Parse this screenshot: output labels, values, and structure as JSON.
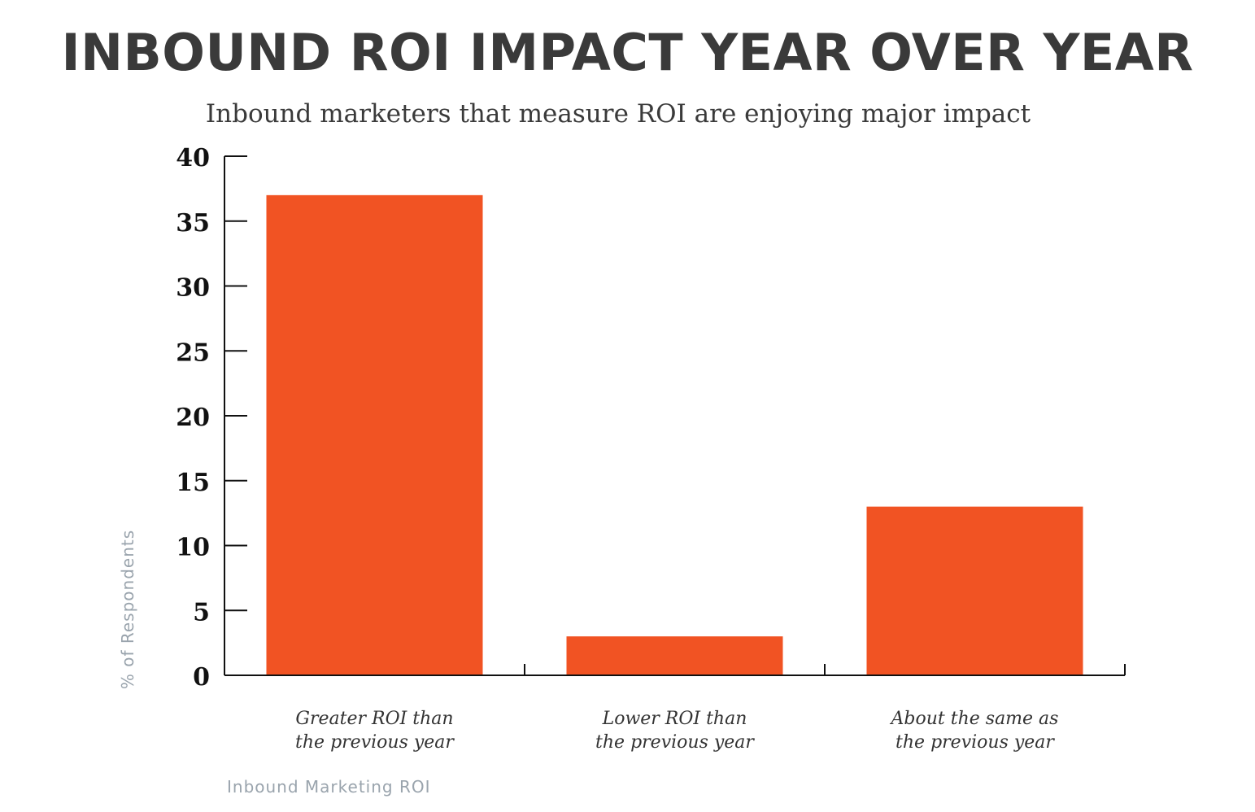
{
  "chart_data": {
    "type": "bar",
    "title": "INBOUND ROI IMPACT YEAR OVER YEAR",
    "subtitle": "Inbound marketers that measure ROI are enjoying major impact",
    "categories": [
      [
        "Greater ROI than",
        "the previous year"
      ],
      [
        "Lower ROI than",
        "the previous year"
      ],
      [
        "About the same as",
        "the previous year"
      ]
    ],
    "values": [
      37,
      3,
      13
    ],
    "xlabel": "",
    "ylabel": "% of Respondents",
    "ylim": [
      0,
      40
    ],
    "yticks": [
      "0",
      "5",
      "10",
      "15",
      "20",
      "25",
      "30",
      "35",
      "40"
    ],
    "bar_color": "#f15323",
    "grid": false,
    "legend": "none"
  },
  "footer": "Inbound Marketing ROI"
}
